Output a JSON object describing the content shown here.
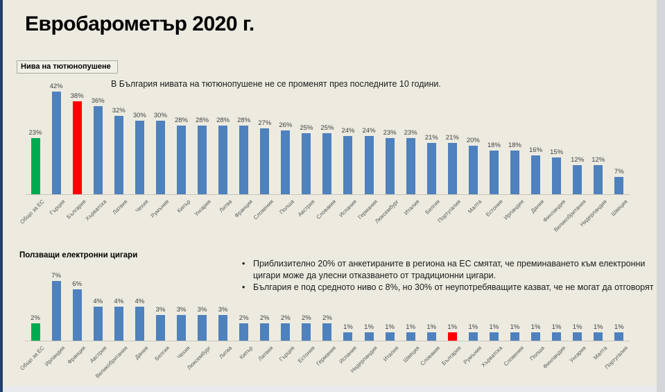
{
  "slide": {
    "title": "Евробарометър 2020 г."
  },
  "colors": {
    "bar_blue": "#4E81BD",
    "eu_green": "#00AB50",
    "bulgaria_red": "#FE0000",
    "background": "#EDEBE0"
  },
  "chart_data": [
    {
      "type": "bar",
      "title": "Нива на тютюнопушене",
      "note": "В България нивата на тютюнопушене не се променят през последните 10 години.",
      "unit": "%",
      "ylim": [
        0,
        45
      ],
      "legend_position": "none",
      "grid": false,
      "categories": [
        "Общо за ЕС",
        "Гърция",
        "България",
        "Хърватска",
        "Латвия",
        "Чехия",
        "Румъния",
        "Кипър",
        "Унгария",
        "Литва",
        "Франция",
        "Словения",
        "Полша",
        "Австрия",
        "Словакия",
        "Испания",
        "Германия",
        "Люксембург",
        "Италия",
        "Белгия",
        "Португалия",
        "Малта",
        "Естония",
        "Ирландия",
        "Дания",
        "Финландия",
        "Великобритания",
        "Нидерландия",
        "Швеция"
      ],
      "values": [
        23,
        42,
        38,
        36,
        32,
        30,
        30,
        28,
        28,
        28,
        28,
        27,
        26,
        25,
        25,
        24,
        24,
        23,
        23,
        21,
        21,
        20,
        18,
        18,
        16,
        15,
        12,
        12,
        7
      ],
      "highlights": {
        "green_index": 0,
        "red_index": 2
      }
    },
    {
      "type": "bar",
      "title": "Ползващи електронни цигари",
      "bullets": [
        "Приблизително 20% от анкетираните в региона на ЕС смятат, че преминаването към електронни цигари може да улесни отказването от традиционни цигари.",
        "България е под средното ниво с 8%, но 30% от неупотребяващите казват, че не могат да отговорят"
      ],
      "unit": "%",
      "ylim": [
        0,
        8
      ],
      "legend_position": "none",
      "grid": false,
      "categories": [
        "Общо за ЕС",
        "Ирландия",
        "Франция",
        "Австрия",
        "Великобритания",
        "Дания",
        "Белгия",
        "Чехия",
        "Люксембург",
        "Литва",
        "Кипър",
        "Латвия",
        "Гърция",
        "Естония",
        "Германия",
        "Испания",
        "Нидерландия",
        "Италия",
        "Швеция",
        "Словакия",
        "България",
        "Румъния",
        "Хърватска",
        "Словения",
        "Полша",
        "Финландия",
        "Унгария",
        "Малта",
        "Португалия"
      ],
      "values": [
        2,
        7,
        6,
        4,
        4,
        4,
        3,
        3,
        3,
        3,
        2,
        2,
        2,
        2,
        2,
        1,
        1,
        1,
        1,
        1,
        1,
        1,
        1,
        1,
        1,
        1,
        1,
        1,
        1
      ],
      "highlights": {
        "green_index": 0,
        "red_index": 20
      }
    }
  ]
}
